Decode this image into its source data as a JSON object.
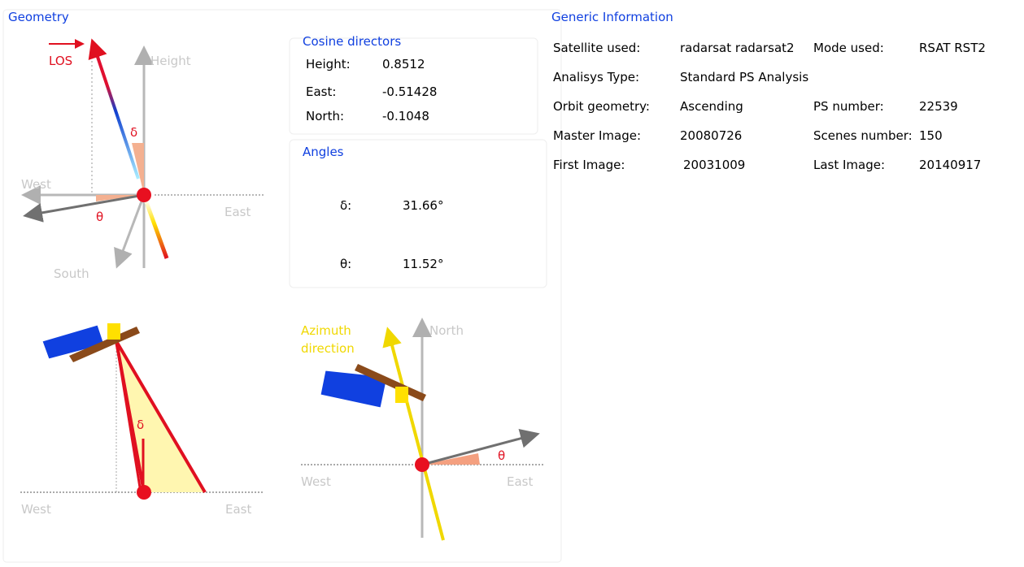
{
  "geometry": {
    "title": "Geometry",
    "los": "LOS",
    "delta": "δ",
    "theta": "θ",
    "height": "Height",
    "west": "West",
    "east": "East",
    "south": "South"
  },
  "cosine_directors": {
    "title": "Cosine directors",
    "rows": [
      [
        "Height:",
        "0.8512"
      ],
      [
        "East:",
        "-0.51428"
      ],
      [
        "North:",
        "-0.1048"
      ]
    ]
  },
  "angles": {
    "title": "Angles",
    "rows": [
      [
        "δ:",
        "31.66°"
      ],
      [
        "θ:",
        "11.52°"
      ]
    ]
  },
  "side_view": {
    "delta": "δ",
    "west": "West",
    "east": "East"
  },
  "top_view": {
    "azimuth": "Azimuth",
    "direction": "direction",
    "north": "North",
    "west": "West",
    "east": "East",
    "theta": "θ"
  },
  "generic_information": {
    "title": "Generic Information",
    "rows": [
      [
        "Satellite used:",
        "radarsat radarsat2",
        "Mode used:",
        "RSAT RST2"
      ],
      [
        "Analisys Type:",
        "Standard PS Analysis"
      ],
      [
        "Orbit geometry:",
        "Ascending",
        "PS number:",
        "22539"
      ],
      [
        "Master Image:",
        "20080726",
        "Scenes number:",
        "150"
      ],
      [
        "First Image:",
        "20031009",
        "Last Image:",
        "20140917"
      ]
    ]
  }
}
